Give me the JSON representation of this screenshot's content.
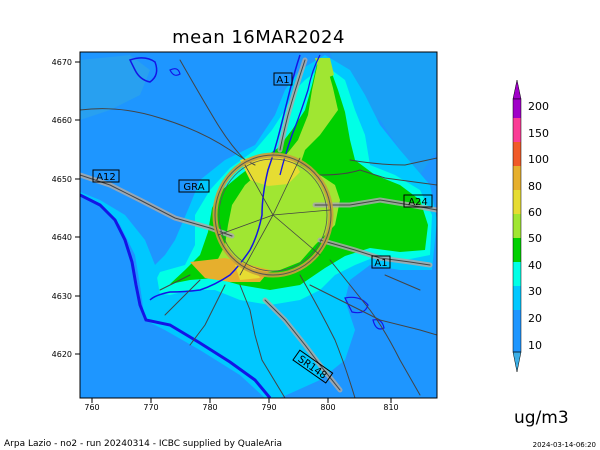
{
  "title": "mean 16MAR2024",
  "y_ticks": [
    "4670",
    "4660",
    "4650",
    "4640",
    "4630",
    "4620"
  ],
  "x_ticks": [
    "760",
    "770",
    "780",
    "790",
    "800",
    "810"
  ],
  "road_labels": {
    "a1_north": "A1",
    "a12": "A12",
    "gra": "GRA",
    "a24": "A24",
    "a1_south": "A1",
    "sr148": "SR148"
  },
  "colorbar": {
    "labels": [
      "10",
      "20",
      "30",
      "40",
      "50",
      "60",
      "80",
      "100",
      "150",
      "200"
    ],
    "colors": [
      "#1e96ff",
      "#00c8ff",
      "#00ffe6",
      "#00d000",
      "#a0e632",
      "#e6dc32",
      "#e6af2d",
      "#f05a28",
      "#fa3c96",
      "#a000c8"
    ],
    "under_color": "#3cafe6",
    "over_color": "#a000c8"
  },
  "units": "ug/m3",
  "footer": {
    "credit": "Arpa Lazio - no2 - run 20240314 - ICBC supplied by QualeAria",
    "timestamp": "2024-03-14-06:20"
  }
}
